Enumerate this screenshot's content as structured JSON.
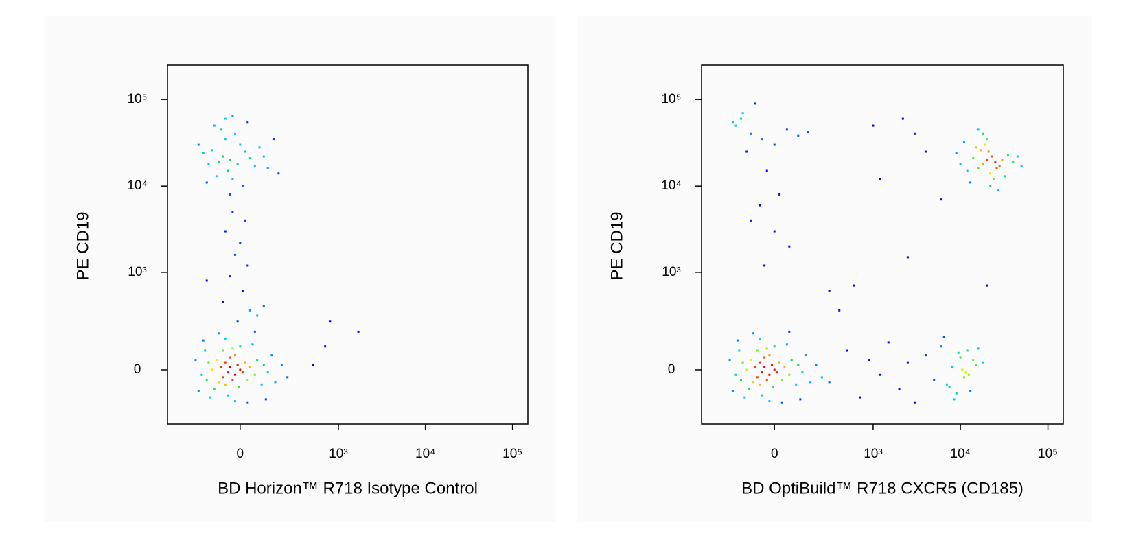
{
  "chart_data": [
    {
      "type": "scatter",
      "x_label": "BD Horizon™ R718 Isotype Control",
      "y_label": "PE CD19",
      "xscale": "biexponential",
      "yscale": "biexponential",
      "xlim": [
        -500,
        150000
      ],
      "ylim": [
        -300,
        250000
      ],
      "xticks": [
        0,
        {
          "value": 1000,
          "label": "10³"
        },
        {
          "value": 10000,
          "label": "10⁴"
        },
        {
          "value": 100000,
          "label": "10⁵"
        }
      ],
      "yticks": [
        0,
        {
          "value": 1000,
          "label": "10³"
        },
        {
          "value": 10000,
          "label": "10⁴"
        },
        {
          "value": 100000,
          "label": "10⁵"
        }
      ],
      "x": [
        -40,
        -20,
        -60,
        0,
        -30,
        -50,
        -10,
        -70,
        10,
        -40,
        -80,
        20,
        -20,
        -60,
        30,
        -100,
        -90,
        40,
        -5,
        -120,
        60,
        -30,
        -70,
        70,
        -110,
        -140,
        90,
        -50,
        0,
        100,
        -150,
        120,
        -20,
        -160,
        50,
        140,
        -130,
        -180,
        160,
        30,
        200,
        -60,
        -200,
        -90,
        240,
        110,
        -170,
        60,
        -220,
        -40,
        -10,
        -70,
        20,
        -50,
        -90,
        0,
        -30,
        40,
        -120,
        -60,
        60,
        -20,
        -100,
        80,
        -140,
        10,
        -80,
        100,
        -170,
        -40,
        120,
        -200,
        30,
        -60,
        150,
        -150,
        -30,
        180,
        -110,
        -30,
        20,
        -60,
        0,
        -20,
        30,
        -40,
        10,
        -70,
        40,
        -10,
        70,
        100,
        -150,
        800,
        1700,
        500,
        700
      ],
      "values": [
        10,
        -20,
        30,
        0,
        -40,
        -10,
        20,
        -30,
        -10,
        50,
        10,
        30,
        60,
        -60,
        -40,
        40,
        -50,
        10,
        -70,
        0,
        -20,
        90,
        80,
        40,
        -80,
        30,
        -60,
        -110,
        100,
        20,
        -40,
        -10,
        -140,
        80,
        110,
        60,
        -120,
        -20,
        -50,
        -150,
        20,
        140,
        -90,
        170,
        -30,
        -130,
        130,
        180,
        40,
        20000,
        18000,
        22000,
        25000,
        15000,
        19000,
        30000,
        12000,
        21000,
        26000,
        35000,
        17000,
        40000,
        13000,
        28000,
        18000,
        10000,
        45000,
        22000,
        24000,
        8000,
        16000,
        30000,
        55000,
        60000,
        35000,
        11000,
        65000,
        14000,
        50000,
        5000,
        4000,
        3000,
        2200,
        1600,
        1200,
        900,
        600,
        450,
        350,
        250,
        300,
        400,
        800,
        250,
        180,
        20,
        100
      ]
    },
    {
      "type": "scatter",
      "x_label": "BD OptiBuild™ R718 CXCR5 (CD185)",
      "y_label": "PE CD19",
      "xscale": "biexponential",
      "yscale": "biexponential",
      "xlim": [
        -500,
        150000
      ],
      "ylim": [
        -300,
        250000
      ],
      "xticks": [
        0,
        {
          "value": 1000,
          "label": "10³"
        },
        {
          "value": 10000,
          "label": "10⁴"
        },
        {
          "value": 100000,
          "label": "10⁵"
        }
      ],
      "yticks": [
        0,
        {
          "value": 1000,
          "label": "10³"
        },
        {
          "value": 10000,
          "label": "10⁴"
        },
        {
          "value": 100000,
          "label": "10⁵"
        }
      ],
      "x": [
        -40,
        -20,
        -60,
        0,
        -30,
        -50,
        -10,
        -70,
        10,
        -40,
        -80,
        20,
        -20,
        -60,
        30,
        -100,
        -90,
        40,
        -5,
        -120,
        60,
        -30,
        -70,
        70,
        -110,
        -140,
        90,
        -50,
        0,
        100,
        -150,
        120,
        -20,
        -160,
        50,
        140,
        -130,
        -180,
        160,
        30,
        200,
        -60,
        -200,
        -90,
        240,
        110,
        -170,
        60,
        -220,
        20000,
        18000,
        23000,
        16000,
        25000,
        21000,
        14000,
        28000,
        19000,
        12000,
        30000,
        22000,
        17000,
        35000,
        10000,
        24000,
        15000,
        40000,
        20000,
        13000,
        26000,
        9000,
        32000,
        18000,
        45000,
        22000,
        11000,
        27000,
        16000,
        50000,
        -150,
        -100,
        -50,
        0,
        50,
        -200,
        -120,
        100,
        -80,
        -30,
        -180,
        20,
        150,
        -60,
        -100,
        0,
        -140,
        60,
        -40,
        300,
        300,
        500,
        700,
        900,
        1200,
        1500,
        2000,
        2500,
        3000,
        4000,
        5000,
        6000,
        7000,
        8000,
        9000,
        10000,
        11000,
        12000,
        13000,
        15000,
        8500,
        9500,
        11500,
        14000,
        6500,
        7500,
        10500,
        12500,
        16000,
        18000,
        1000,
        3000,
        2500,
        6000,
        1200,
        4000,
        2200,
        600,
        400,
        20000
      ],
      "values": [
        10,
        -20,
        30,
        0,
        -40,
        -10,
        20,
        -30,
        -10,
        50,
        10,
        30,
        60,
        -60,
        -40,
        40,
        -50,
        10,
        -70,
        0,
        -20,
        90,
        80,
        40,
        -80,
        30,
        -60,
        -110,
        100,
        20,
        -40,
        -10,
        -140,
        80,
        110,
        60,
        -120,
        -20,
        -50,
        -150,
        20,
        140,
        -90,
        170,
        -30,
        -130,
        130,
        180,
        40,
        20000,
        18000,
        22000,
        16000,
        19000,
        25000,
        21000,
        17000,
        30000,
        15000,
        20000,
        14000,
        26000,
        23000,
        18000,
        12000,
        28000,
        19000,
        35000,
        11000,
        16000,
        24000,
        13000,
        40000,
        22000,
        10000,
        32000,
        9000,
        45000,
        17000,
        60000,
        40000,
        35000,
        30000,
        45000,
        55000,
        25000,
        38000,
        90000,
        15000,
        50000,
        8000,
        42000,
        6000,
        4000,
        3000,
        70000,
        2000,
        1200,
        600,
        -50,
        80,
        -120,
        40,
        -20,
        120,
        -80,
        30,
        -150,
        60,
        -40,
        100,
        -60,
        10,
        -100,
        50,
        -30,
        80,
        -90,
        20,
        -130,
        70,
        -10,
        40,
        150,
        -70,
        0,
        -20,
        90,
        30,
        50000,
        40000,
        1500,
        7000,
        12000,
        25000,
        60000,
        700,
        350,
        700
      ]
    }
  ]
}
